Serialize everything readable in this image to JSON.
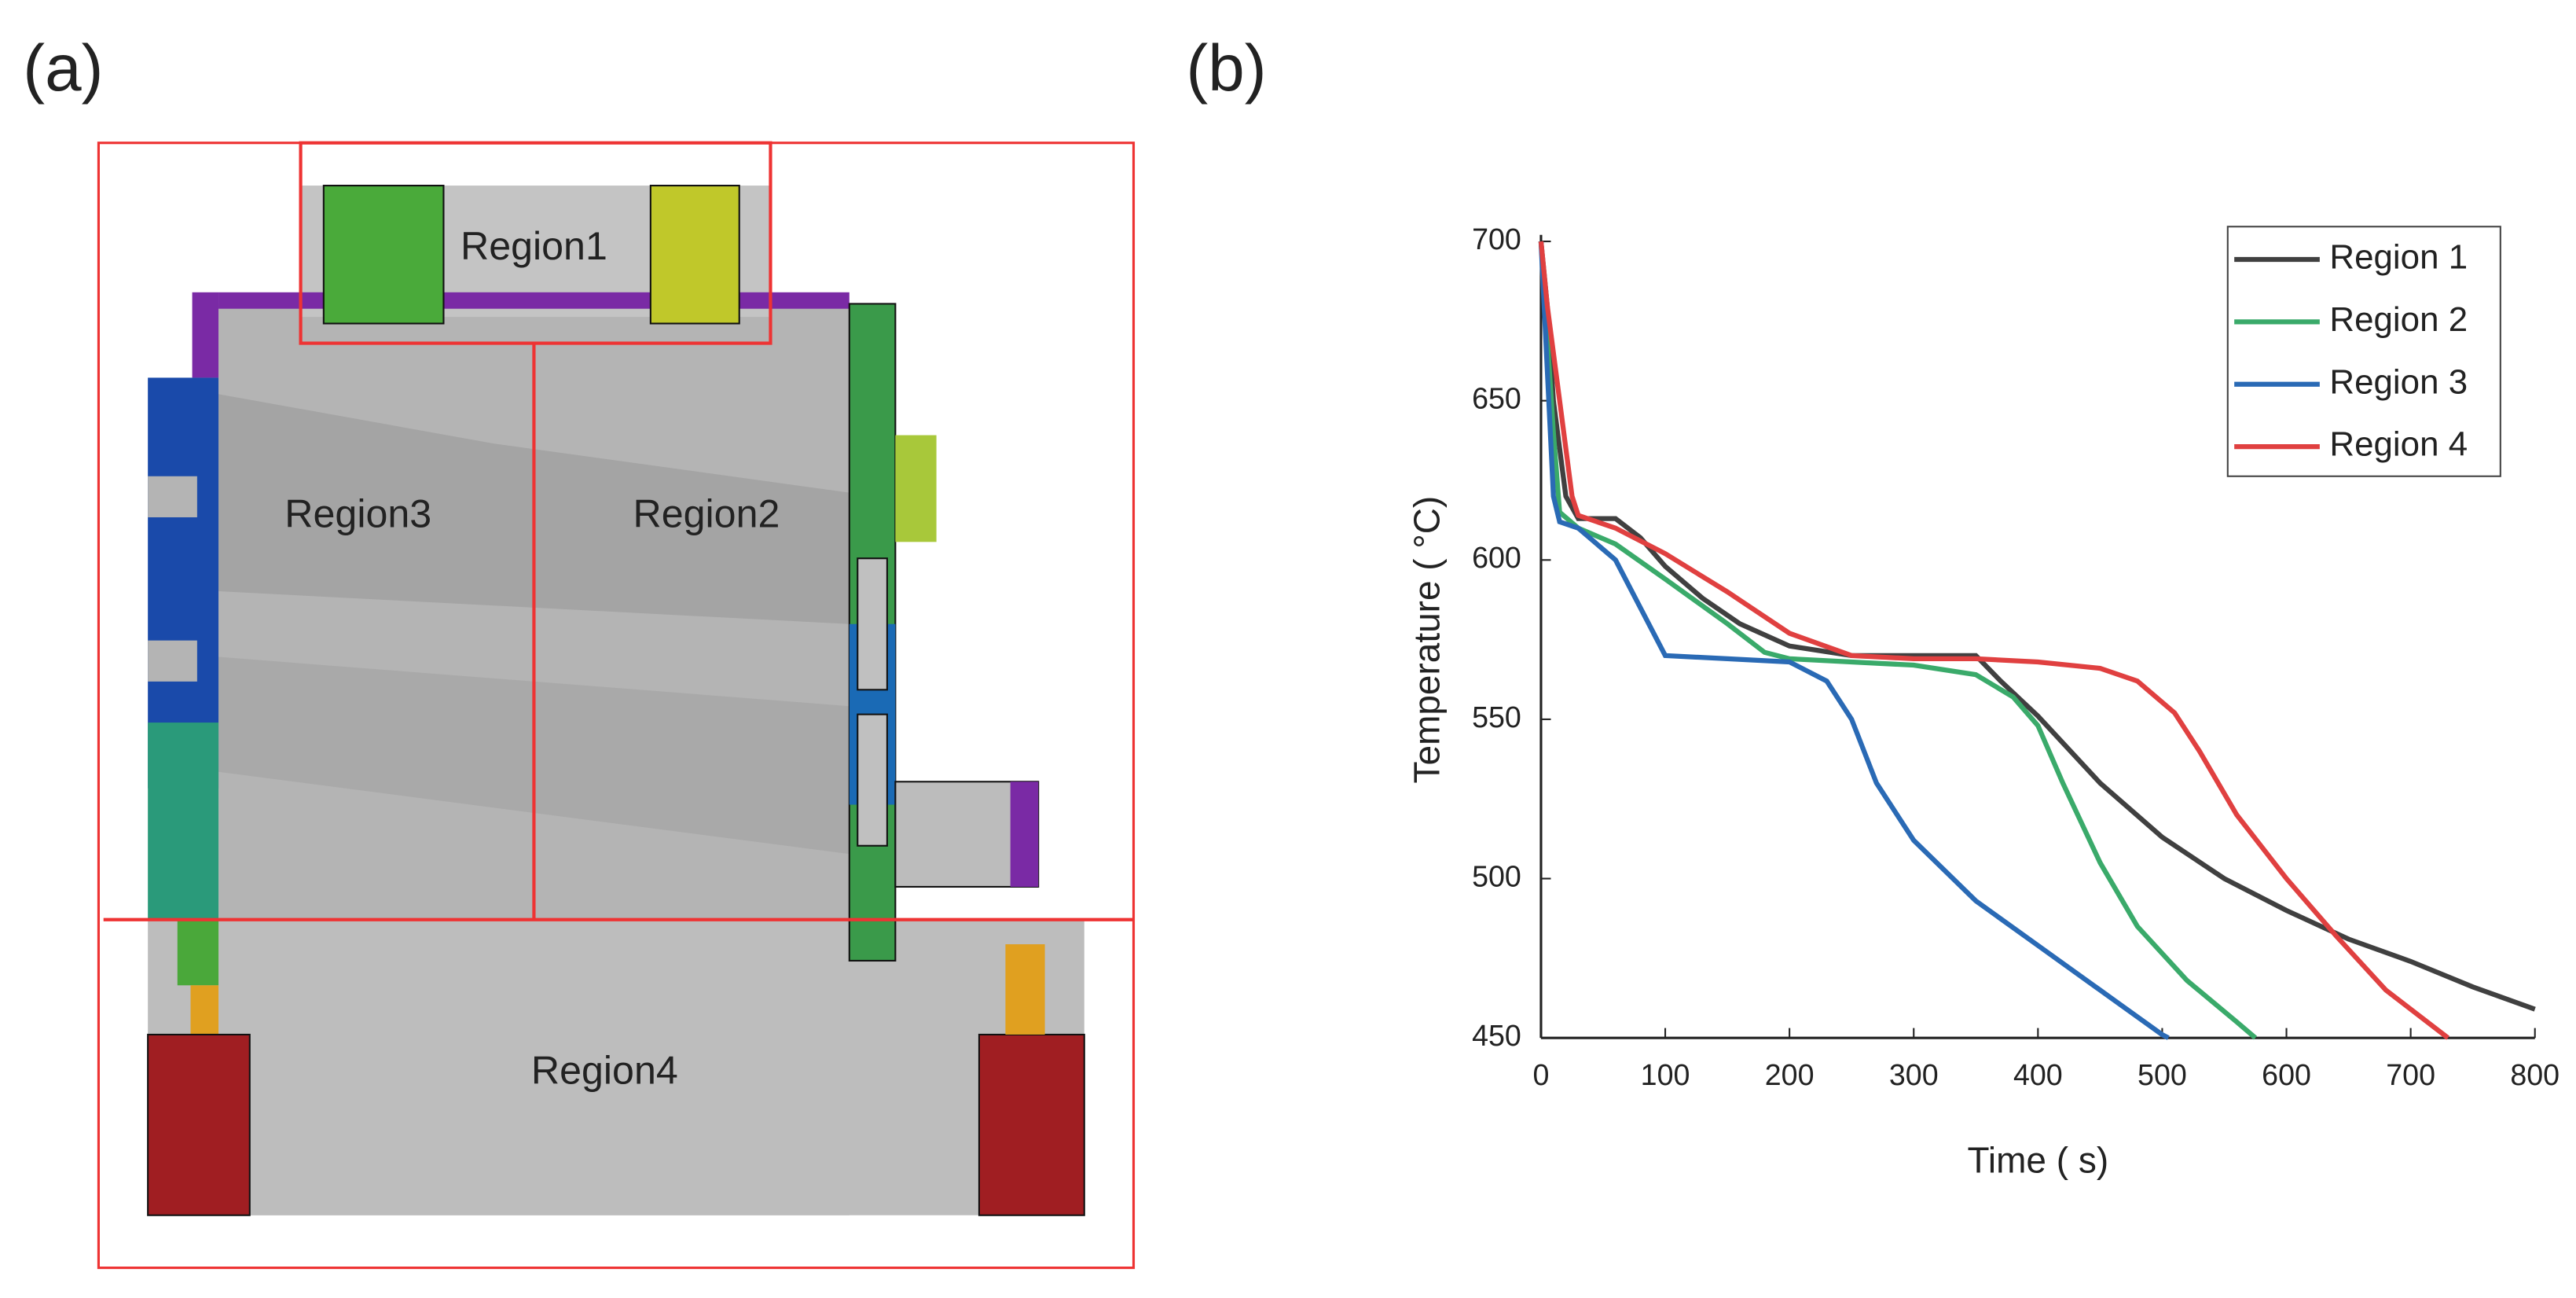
{
  "panels": [
    "(a)",
    "(b)"
  ],
  "diagram": {
    "labels": [
      "Region1",
      "Region3",
      "Region2",
      "Region4"
    ]
  },
  "chart_data": {
    "type": "line",
    "x_label": "Time ( s)",
    "y_label": "Temperature ( °C)",
    "xlim": [
      0,
      800
    ],
    "ylim": [
      450,
      700
    ],
    "xticks": [
      0,
      100,
      200,
      300,
      400,
      500,
      600,
      700,
      800
    ],
    "yticks": [
      450,
      500,
      550,
      600,
      650,
      700
    ],
    "legend": "upper right",
    "series": [
      {
        "name": "Region 1",
        "color": "#404040",
        "x": [
          0,
          5,
          10,
          20,
          30,
          60,
          80,
          100,
          130,
          160,
          200,
          250,
          300,
          350,
          370,
          400,
          450,
          500,
          550,
          600,
          650,
          700,
          750,
          800
        ],
        "values": [
          700,
          680,
          650,
          620,
          613,
          613,
          607,
          598,
          588,
          580,
          573,
          570,
          570,
          570,
          562,
          551,
          530,
          513,
          500,
          490,
          481,
          474,
          466,
          459
        ]
      },
      {
        "name": "Region 2",
        "color": "#3aaa6a",
        "x": [
          0,
          5,
          10,
          15,
          30,
          60,
          100,
          150,
          180,
          200,
          250,
          300,
          350,
          380,
          400,
          420,
          450,
          480,
          520,
          560,
          575
        ],
        "values": [
          700,
          670,
          640,
          615,
          610,
          605,
          594,
          580,
          571,
          569,
          568,
          567,
          564,
          557,
          548,
          530,
          505,
          485,
          468,
          455,
          450
        ]
      },
      {
        "name": "Region 3",
        "color": "#2a6ab5",
        "x": [
          0,
          5,
          10,
          15,
          30,
          60,
          80,
          100,
          150,
          200,
          230,
          250,
          270,
          300,
          350,
          400,
          450,
          500,
          505
        ],
        "values": [
          700,
          660,
          620,
          612,
          610,
          600,
          585,
          570,
          569,
          568,
          562,
          550,
          530,
          512,
          493,
          479,
          465,
          451,
          450
        ]
      },
      {
        "name": "Region 4",
        "color": "#e04040",
        "x": [
          0,
          5,
          15,
          25,
          30,
          60,
          100,
          150,
          200,
          250,
          300,
          350,
          400,
          450,
          480,
          510,
          530,
          560,
          600,
          640,
          680,
          730
        ],
        "values": [
          700,
          680,
          650,
          620,
          614,
          610,
          602,
          590,
          577,
          570,
          569,
          569,
          568,
          566,
          562,
          552,
          540,
          520,
          500,
          482,
          465,
          450
        ]
      }
    ]
  }
}
